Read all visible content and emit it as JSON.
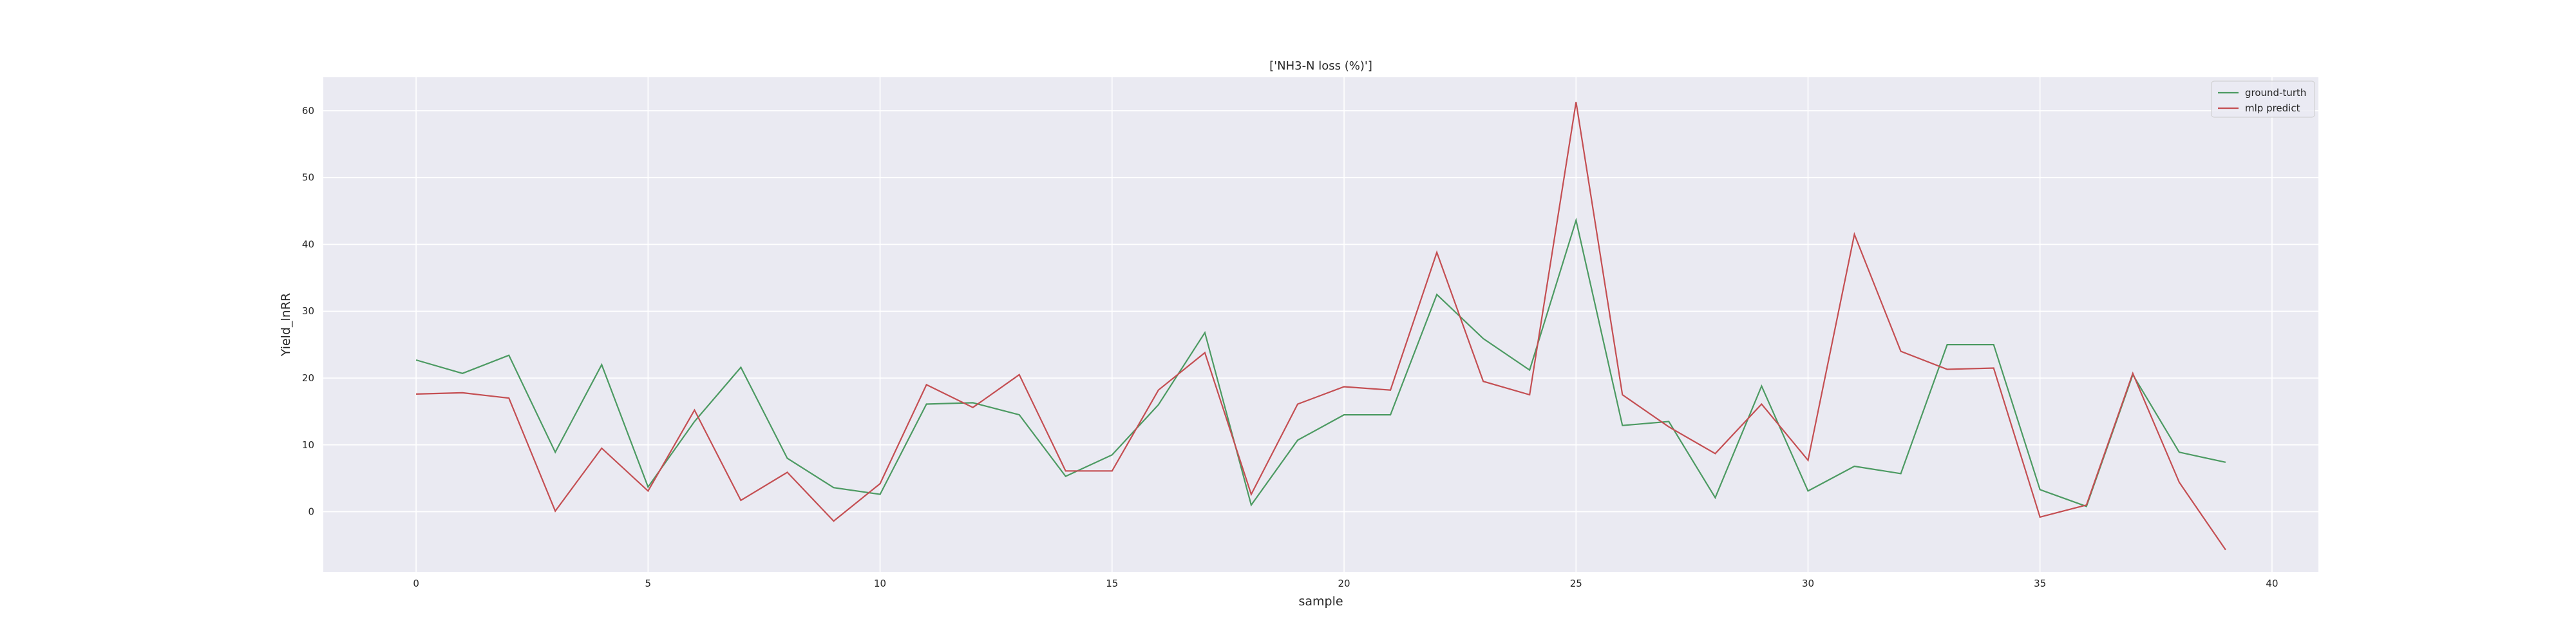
{
  "chart_data": {
    "type": "line",
    "title": "['NH3-N loss (%)']",
    "xlabel": "sample",
    "ylabel": "Yield_lnRR",
    "xlim": [
      -2,
      41
    ],
    "ylim": [
      -9,
      65
    ],
    "xticks": [
      0,
      5,
      10,
      15,
      20,
      25,
      30,
      35,
      40
    ],
    "yticks": [
      0,
      10,
      20,
      30,
      40,
      50,
      60
    ],
    "grid": true,
    "legend_position": "top-right",
    "x": [
      0,
      1,
      2,
      3,
      4,
      5,
      6,
      7,
      8,
      9,
      10,
      11,
      12,
      13,
      14,
      15,
      16,
      17,
      18,
      19,
      20,
      21,
      22,
      23,
      24,
      25,
      26,
      27,
      28,
      29,
      30,
      31,
      32,
      33,
      34,
      35,
      36,
      37,
      38,
      39
    ],
    "series": [
      {
        "name": "ground-turth",
        "color": "#4c9a62",
        "values": [
          22.7,
          20.7,
          23.4,
          8.9,
          22.0,
          3.7,
          13.5,
          21.6,
          8.0,
          3.6,
          2.6,
          16.1,
          16.3,
          14.5,
          5.3,
          8.5,
          16.0,
          26.8,
          1.0,
          10.7,
          14.5,
          14.5,
          32.5,
          25.9,
          21.2,
          43.6,
          12.9,
          13.5,
          2.1,
          18.8,
          3.1,
          6.8,
          5.7,
          25.0,
          25.0,
          3.3,
          0.8,
          20.5,
          8.9,
          7.4
        ]
      },
      {
        "name": "mlp predict",
        "color": "#c44e52",
        "values": [
          17.6,
          17.8,
          17.0,
          0.1,
          9.5,
          3.1,
          15.2,
          1.7,
          5.9,
          -1.4,
          4.2,
          19.0,
          15.6,
          20.5,
          6.1,
          6.1,
          18.2,
          23.8,
          2.6,
          16.1,
          18.7,
          18.2,
          38.8,
          19.5,
          17.5,
          61.3,
          17.5,
          12.7,
          8.7,
          16.1,
          7.7,
          41.5,
          24.0,
          21.3,
          21.5,
          -0.8,
          1.0,
          20.7,
          4.4,
          -5.7
        ]
      }
    ]
  },
  "colors": {
    "plot_background": "#eaeaf2",
    "grid": "#ffffff",
    "text": "#262626"
  }
}
